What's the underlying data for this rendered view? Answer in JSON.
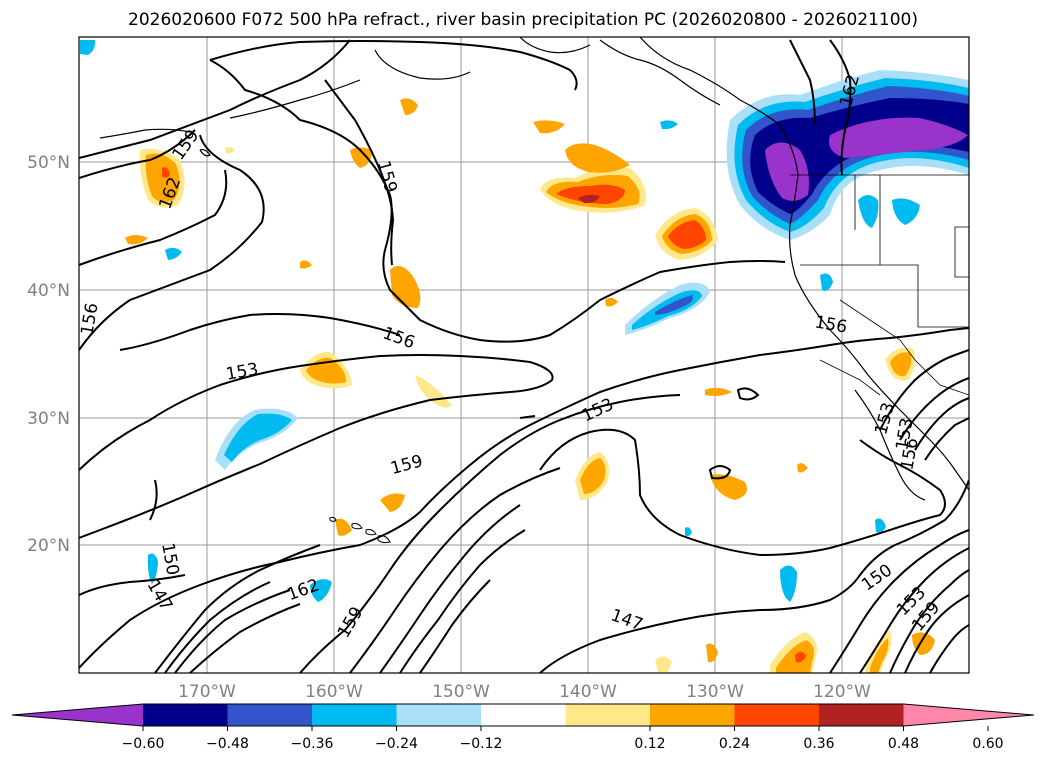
{
  "title": "2026020600 F072 500 hPa refract., river basin precipitation PC (2026020800 - 2026021100)",
  "lat_labels": [
    "50°N",
    "40°N",
    "30°N",
    "20°N"
  ],
  "lon_labels": [
    "170°W",
    "160°W",
    "150°W",
    "140°W",
    "130°W",
    "120°W"
  ],
  "contour_labels": [
    "159",
    "162",
    "159",
    "162",
    "156",
    "156",
    "156",
    "153",
    "153",
    "159",
    "153",
    "150",
    "147",
    "162",
    "159",
    "147",
    "150",
    "153",
    "159",
    "153",
    "156"
  ],
  "colorbar": {
    "ticks": [
      "−0.60",
      "−0.48",
      "−0.36",
      "−0.24",
      "−0.12",
      "0.12",
      "0.24",
      "0.36",
      "0.48",
      "0.60"
    ],
    "colors": [
      "#9933cc",
      "#00008b",
      "#3355cc",
      "#00bbf0",
      "#aadffa",
      "#ffffff",
      "#ffe88a",
      "#ffa500",
      "#ff4500",
      "#b22222",
      "#ff88aa"
    ]
  },
  "colors": {
    "purple": "#9933cc",
    "navy": "#00008b",
    "blue": "#3355cc",
    "cyan": "#00bbf0",
    "lightblue": "#aadffa",
    "yellow": "#ffe88a",
    "orange": "#ffa500",
    "redorange": "#ff4500",
    "darkred": "#b22222"
  }
}
